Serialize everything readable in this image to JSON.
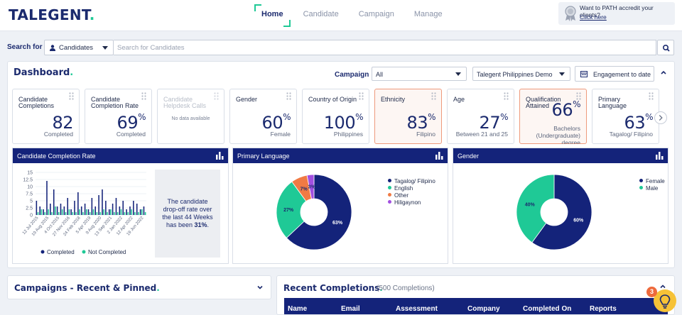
{
  "header": {
    "logo": "TALEGENT",
    "logo_dot": ".",
    "nav": [
      {
        "label": "Home",
        "active": true
      },
      {
        "label": "Candidate",
        "active": false
      },
      {
        "label": "Campaign",
        "active": false
      },
      {
        "label": "Manage",
        "active": false
      }
    ],
    "path_prompt": "Want to PATH accredit your clients?",
    "path_link": "Click here"
  },
  "search": {
    "label": "Search for",
    "type_value": "Candidates",
    "placeholder": "Search for Candidates"
  },
  "dashboard": {
    "title": "Dashboard",
    "title_dot": ".",
    "campaign_label": "Campaign",
    "campaign_value": "All",
    "client_value": "Talegent Philippines Demo",
    "engagement_label": "Engagement to date",
    "kpis": [
      {
        "title": "Candidate Completions",
        "value": "82",
        "unit": "",
        "sub": "Completed"
      },
      {
        "title": "Candidate Completion Rate",
        "value": "69",
        "unit": "%",
        "sub": "Completed"
      },
      {
        "title": "Candidate Helpdesk Calls",
        "nodata": "No data available"
      },
      {
        "title": "Gender",
        "value": "60",
        "unit": "%",
        "sub": "Female"
      },
      {
        "title": "Country of Origin",
        "value": "100",
        "unit": "%",
        "sub": "Philippines"
      },
      {
        "title": "Ethnicity",
        "value": "83",
        "unit": "%",
        "sub": "Filipino"
      },
      {
        "title": "Age",
        "value": "27",
        "unit": "%",
        "sub": "Between 21 and 25"
      },
      {
        "title": "Qualification Attained",
        "value": "66",
        "unit": "%",
        "sub": "Bachelors (Undergraduate) degree"
      },
      {
        "title": "Primary Language",
        "value": "63",
        "unit": "%",
        "sub": "Tagalog/ Filipino"
      }
    ],
    "dropoff": {
      "text_before": "The candidate drop-off rate over the last 44 Weeks has been",
      "value": "31%",
      "text_after": "."
    }
  },
  "chart_data": [
    {
      "type": "bar",
      "title": "Candidate Completion Rate",
      "ylim": [
        0,
        15
      ],
      "yticks": [
        "15",
        "12.5",
        "10",
        "7.5",
        "5",
        "2.5",
        "0"
      ],
      "x_tick_labels": [
        "12 Jul 2015",
        "19 Aug 2015",
        "4 Oct 2015",
        "27 Nov 2016",
        "24 Feb 2018",
        "5 Apr 2019",
        "9 Aug 2020",
        "13 Sep 2021",
        "2 Jan 2022",
        "12 Apr 2022",
        "19 Jun 2022"
      ],
      "legend": [
        {
          "name": "Completed",
          "color": "#14237a"
        },
        {
          "name": "Not Completed",
          "color": "#1fc996"
        }
      ],
      "series": [
        {
          "name": "Completed",
          "color": "#14237a",
          "values": [
            5,
            3,
            2,
            12,
            4,
            9,
            3,
            4,
            3,
            6,
            2,
            5,
            8,
            3,
            4,
            2,
            6,
            3,
            7,
            9,
            5,
            2,
            4,
            6,
            3,
            5,
            2,
            3,
            5,
            4,
            2,
            3
          ]
        },
        {
          "name": "Not Completed",
          "color": "#1fc996",
          "values": [
            1,
            2,
            1,
            2,
            1,
            3,
            1,
            2,
            1,
            2,
            1,
            1,
            2,
            1,
            2,
            1,
            2,
            1,
            1,
            2,
            1,
            2,
            1,
            1,
            2,
            1,
            1,
            2,
            1,
            1,
            2,
            1
          ]
        }
      ]
    },
    {
      "type": "pie",
      "title": "Primary Language",
      "slices": [
        {
          "label": "Tagalog/ Filipino",
          "value": 63,
          "color": "#14237a",
          "text": "63%"
        },
        {
          "label": "English",
          "value": 27,
          "color": "#1fc996",
          "text": "27%"
        },
        {
          "label": "Other",
          "value": 7,
          "color": "#f07a44",
          "text": "7%"
        },
        {
          "label": "Hiligaynon",
          "value": 3,
          "color": "#a24fe0",
          "text": "3%"
        }
      ]
    },
    {
      "type": "pie",
      "title": "Gender",
      "slices": [
        {
          "label": "Female",
          "value": 60,
          "color": "#14237a",
          "text": "60%"
        },
        {
          "label": "Male",
          "value": 40,
          "color": "#1fc996",
          "text": "40%"
        }
      ]
    }
  ],
  "campaigns": {
    "title": "Campaigns - Recent & Pinned",
    "dot": "."
  },
  "recent": {
    "title": "Recent Completions",
    "dot": ".",
    "count": "(500 Completions)",
    "columns": [
      "Name",
      "Email",
      "Assessment",
      "Company",
      "Completed On",
      "Reports"
    ]
  },
  "help": {
    "badge": "3"
  },
  "icons": {
    "search": "search-icon",
    "calendar": "calendar-icon",
    "grip": "drag-handle-icon",
    "bars": "bar-chart-icon",
    "user": "user-icon",
    "award": "award-ribbon-icon",
    "help": "lightbulb-icon"
  }
}
